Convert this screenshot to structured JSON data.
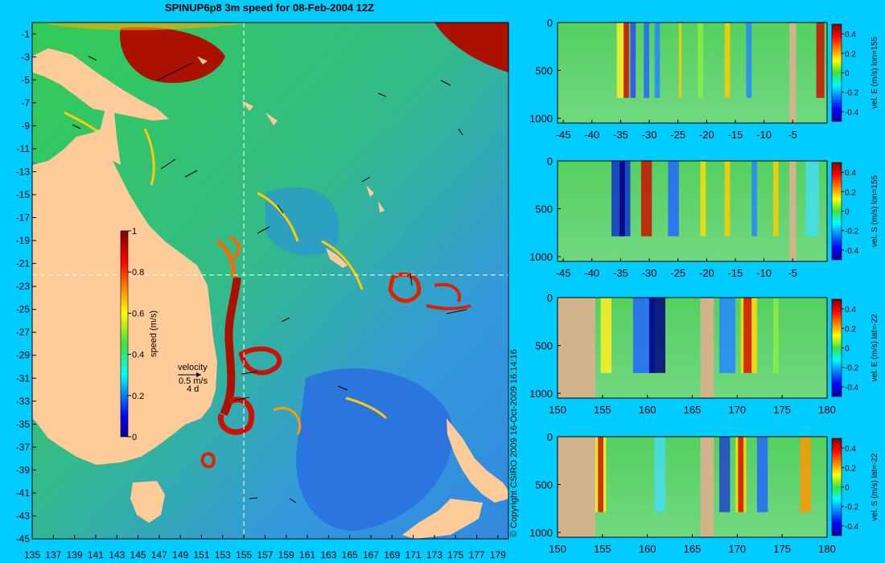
{
  "title": "SPINUP6p8 3m speed for 08-Feb-2004 12Z",
  "copyright": "© Copyright CSIRO 2009   16-Oct-2009 16:14:16",
  "colors": {
    "background": "#00ccff",
    "land": "#ffcc99",
    "section_land": "#d2b48c",
    "guide_line": "#ffffff"
  },
  "map": {
    "lon_range": [
      135,
      180
    ],
    "lat_range": [
      -45,
      0
    ],
    "x_ticks": [
      "135",
      "137",
      "139",
      "141",
      "143",
      "145",
      "147",
      "149",
      "151",
      "153",
      "155",
      "157",
      "159",
      "161",
      "163",
      "165",
      "167",
      "169",
      "171",
      "173",
      "175",
      "177",
      "179"
    ],
    "y_ticks": [
      "-1",
      "-3",
      "-5",
      "-7",
      "-9",
      "-11",
      "-13",
      "-15",
      "-17",
      "-19",
      "-21",
      "-23",
      "-25",
      "-27",
      "-29",
      "-31",
      "-33",
      "-35",
      "-37",
      "-39",
      "-41",
      "-43",
      "-45"
    ],
    "section_lon": 155,
    "section_lat": -22,
    "colorbar": {
      "label": "speed (m/s)",
      "ticks": [
        "1",
        "0.8",
        "0.6",
        "0.4",
        "0.2",
        "0"
      ],
      "range": [
        0,
        1
      ]
    },
    "velocity_legend": {
      "title": "velocity",
      "speed": "0.5 m/s",
      "time": "4 d"
    }
  },
  "panels": [
    {
      "label": "vel. E (m/s) lon=155",
      "x_ticks": [
        "-45",
        "-40",
        "-35",
        "-30",
        "-25",
        "-20",
        "-15",
        "-10",
        "-5"
      ],
      "x_range": [
        -46,
        1
      ],
      "y_ticks": [
        "0",
        "500",
        "1000"
      ],
      "cb_ticks": [
        "0.4",
        "0.2",
        "0",
        "-0.2",
        "-0.4"
      ]
    },
    {
      "label": "vel. S (m/s) lon=155",
      "x_ticks": [
        "-45",
        "-40",
        "-35",
        "-30",
        "-25",
        "-20",
        "-15",
        "-10",
        "-5"
      ],
      "x_range": [
        -46,
        1
      ],
      "y_ticks": [
        "0",
        "500",
        "1000"
      ],
      "cb_ticks": [
        "0.4",
        "0.2",
        "0",
        "-0.2",
        "-0.4"
      ]
    },
    {
      "label": "vel. E (m/s) lat=-22",
      "x_ticks": [
        "150",
        "155",
        "160",
        "165",
        "170",
        "175",
        "180"
      ],
      "x_range": [
        150,
        180
      ],
      "y_ticks": [
        "0",
        "500",
        "1000"
      ],
      "cb_ticks": [
        "0.4",
        "0.2",
        "0",
        "-0.2",
        "-0.4"
      ]
    },
    {
      "label": "vel. S (m/s) lat=-22",
      "x_ticks": [
        "150",
        "155",
        "160",
        "165",
        "170",
        "175",
        "180"
      ],
      "x_range": [
        150,
        180
      ],
      "y_ticks": [
        "0",
        "500",
        "1000"
      ],
      "cb_ticks": [
        "0.4",
        "0.2",
        "0",
        "-0.2",
        "-0.4"
      ]
    }
  ]
}
